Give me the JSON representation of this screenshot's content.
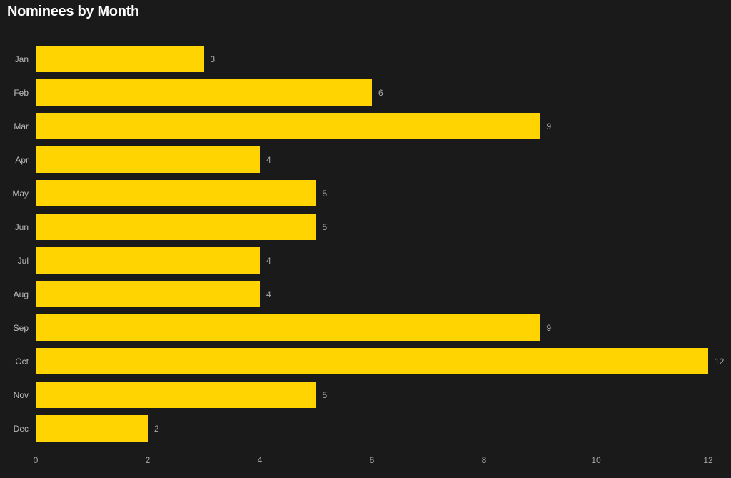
{
  "chart_data": {
    "type": "bar",
    "orientation": "horizontal",
    "title": "Nominees by Month",
    "categories": [
      "Jan",
      "Feb",
      "Mar",
      "Apr",
      "May",
      "Jun",
      "Jul",
      "Aug",
      "Sep",
      "Oct",
      "Nov",
      "Dec"
    ],
    "values": [
      3,
      6,
      9,
      4,
      5,
      5,
      4,
      4,
      9,
      12,
      5,
      2
    ],
    "xlabel": "",
    "ylabel": "",
    "xlim": [
      0,
      12
    ],
    "x_ticks": [
      0,
      2,
      4,
      6,
      8,
      10,
      12
    ],
    "grid": false,
    "legend_position": "none",
    "data_labels": true,
    "colors": {
      "background": "#1B1A1A",
      "bar": "#FFD400",
      "title": "#FFFFFF",
      "category_label": "#B9B9B9",
      "value_label": "#ABABAB",
      "axis_tick_label": "#A6A6A6"
    }
  }
}
